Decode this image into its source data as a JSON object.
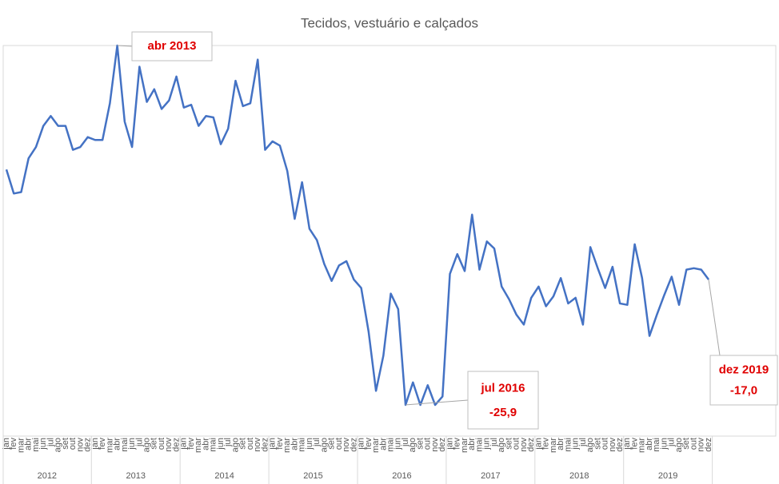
{
  "chart_data": {
    "type": "line",
    "title": "Tecidos, vestuário e calçados",
    "categories": [
      "jan",
      "fev",
      "mar",
      "abr",
      "mai",
      "jun",
      "jul",
      "ago",
      "set",
      "out",
      "nov",
      "dez",
      "jan",
      "fev",
      "mar",
      "abr",
      "mai",
      "jun",
      "jul",
      "ago",
      "set",
      "out",
      "nov",
      "dez",
      "jan",
      "fev",
      "mar",
      "abr",
      "mai",
      "jun",
      "jul",
      "ago",
      "set",
      "out",
      "nov",
      "dez",
      "jan",
      "fev",
      "mar",
      "abr",
      "mai",
      "jun",
      "jul",
      "ago",
      "set",
      "out",
      "nov",
      "dez",
      "jan",
      "fev",
      "mar",
      "abr",
      "mai",
      "jun",
      "jul",
      "ago",
      "set",
      "out",
      "nov",
      "dez",
      "jan",
      "fev",
      "mar",
      "abr",
      "mai",
      "jun",
      "jul",
      "ago",
      "set",
      "out",
      "nov",
      "dez",
      "jan",
      "fev",
      "mar",
      "abr",
      "mai",
      "jun",
      "jul",
      "ago",
      "set",
      "out",
      "nov",
      "dez",
      "jan",
      "fev",
      "mar",
      "abr",
      "mai",
      "jun",
      "jul",
      "ago",
      "set",
      "out",
      "nov",
      "dez"
    ],
    "years": [
      "2012",
      "2013",
      "2014",
      "2015",
      "2016",
      "2017",
      "2018",
      "2019"
    ],
    "series": [
      {
        "color": "#4472c4",
        "values": [
          -9.2,
          -10.9,
          -10.8,
          -8.4,
          -7.6,
          -6.1,
          -5.4,
          -6.1,
          -6.1,
          -7.8,
          -7.6,
          -6.9,
          -7.1,
          -7.1,
          -4.5,
          -0.4,
          -5.8,
          -7.6,
          -1.9,
          -4.4,
          -3.5,
          -4.9,
          -4.3,
          -2.6,
          -4.8,
          -4.6,
          -6.1,
          -5.4,
          -5.5,
          -7.4,
          -6.3,
          -2.9,
          -4.7,
          -4.5,
          -1.4,
          -7.8,
          -7.2,
          -7.5,
          -9.3,
          -12.7,
          -10.1,
          -13.4,
          -14.2,
          -15.9,
          -17.1,
          -16.0,
          -15.7,
          -17.0,
          -17.6,
          -20.7,
          -24.9,
          -22.4,
          -18.0,
          -19.1,
          -25.9,
          -24.3,
          -25.9,
          -24.5,
          -25.9,
          -25.3,
          -16.6,
          -15.2,
          -16.4,
          -12.4,
          -16.3,
          -14.3,
          -14.8,
          -17.5,
          -18.4,
          -19.5,
          -20.2,
          -18.3,
          -17.5,
          -18.9,
          -18.2,
          -16.9,
          -18.7,
          -18.3,
          -20.2,
          -14.7,
          -16.2,
          -17.6,
          -16.1,
          -18.7,
          -18.8,
          -14.5,
          -16.9,
          -21.0,
          -19.5,
          -18.1,
          -16.8,
          -18.8,
          -16.3,
          -16.2,
          -16.3,
          -17.0
        ]
      }
    ],
    "annotations": [
      {
        "text": "abr 2013"
      },
      {
        "text": "jul 2016",
        "value_label": "-25,9"
      },
      {
        "text": "dez 2019",
        "value_label": "-17,0"
      }
    ]
  }
}
